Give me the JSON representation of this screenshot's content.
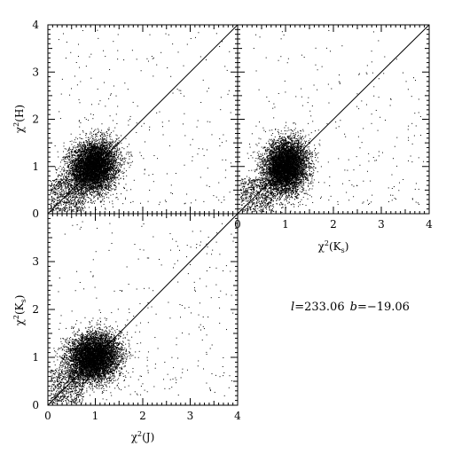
{
  "chart_data": [
    {
      "type": "scatter",
      "panel": "top-left",
      "xlabel": "",
      "ylabel_base": "χ",
      "ylabel_sup": "2",
      "ylabel_arg": "(H)",
      "xlim": [
        0,
        4
      ],
      "ylim": [
        0,
        4
      ],
      "x_ticks": [],
      "y_ticks": [
        "0",
        "1",
        "2",
        "3",
        "4"
      ],
      "reference_line": "y = x",
      "cloud": {
        "center_x": 0.95,
        "center_y": 1.0,
        "spread_x": 0.25,
        "spread_y": 0.27,
        "points": 6500,
        "rho": 0.15
      },
      "tail": {
        "x_max": 4,
        "y_max": 4,
        "points": 260
      }
    },
    {
      "type": "scatter",
      "panel": "top-right",
      "xlabel_base": "χ",
      "xlabel_sup": "2",
      "xlabel_arg": "(K",
      "xlabel_sub": "s",
      "xlabel_close": ")",
      "ylabel": "",
      "xlim": [
        0,
        4
      ],
      "ylim": [
        0,
        4
      ],
      "x_ticks": [
        "0",
        "1",
        "2",
        "3",
        "4"
      ],
      "y_ticks": [],
      "reference_line": "y = x",
      "cloud": {
        "center_x": 1.0,
        "center_y": 1.0,
        "spread_x": 0.22,
        "spread_y": 0.28,
        "points": 6500,
        "rho": 0.1
      },
      "tail": {
        "x_max": 4,
        "y_max": 4,
        "points": 240
      }
    },
    {
      "type": "scatter",
      "panel": "bottom-left",
      "xlabel_base": "χ",
      "xlabel_sup": "2",
      "xlabel_arg": "(J)",
      "ylabel_base": "χ",
      "ylabel_sup": "2",
      "ylabel_arg": "(K",
      "ylabel_sub": "s",
      "ylabel_close": ")",
      "xlim": [
        0,
        4
      ],
      "ylim": [
        0,
        4
      ],
      "x_ticks": [
        "0",
        "1",
        "2",
        "3",
        "4"
      ],
      "y_ticks": [
        "0",
        "1",
        "2",
        "3"
      ],
      "reference_line": "y = x",
      "cloud": {
        "center_x": 0.95,
        "center_y": 1.0,
        "spread_x": 0.27,
        "spread_y": 0.25,
        "points": 6500,
        "rho": 0.1
      },
      "tail": {
        "x_max": 4,
        "y_max": 4,
        "points": 260
      }
    }
  ],
  "annotation": {
    "l_symbol": "l",
    "l_value": "=233.06",
    "b_symbol": "b",
    "b_value": "=−19.06"
  }
}
